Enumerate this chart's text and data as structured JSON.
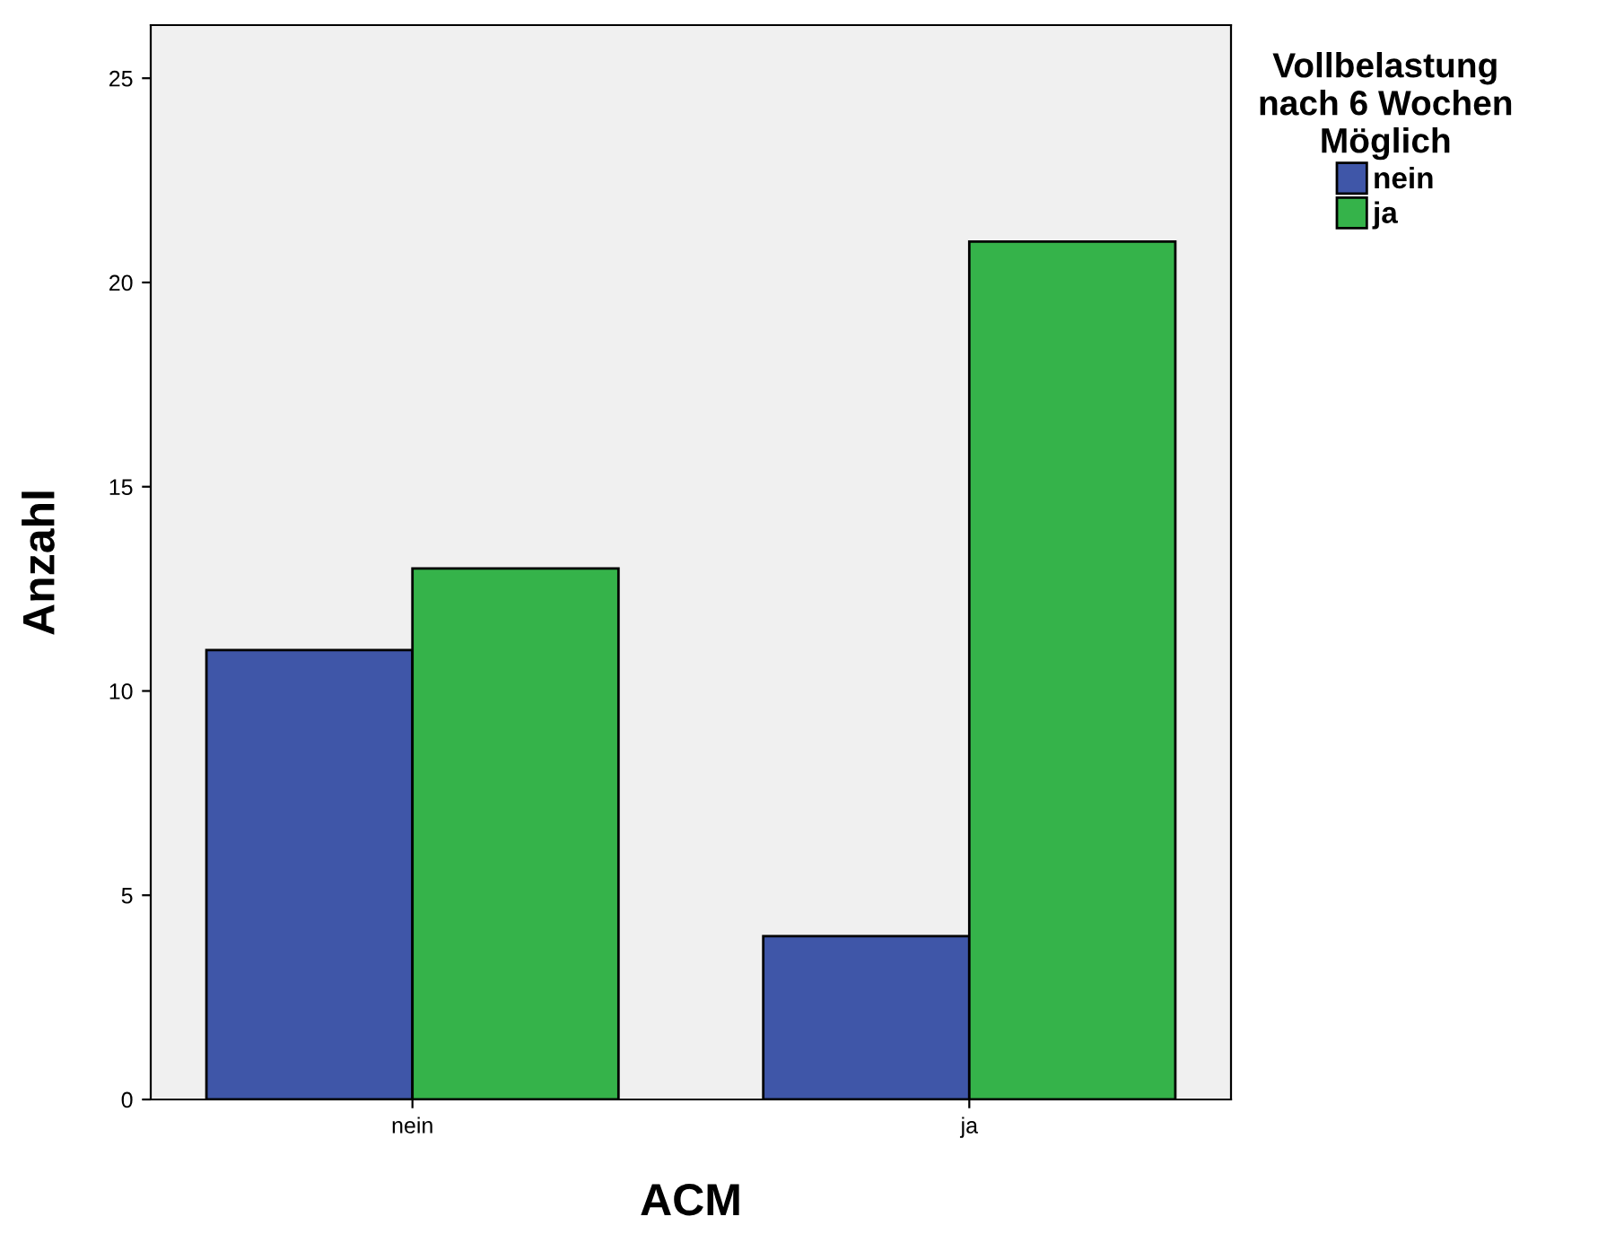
{
  "chart_data": {
    "type": "bar",
    "xlabel": "ACM",
    "ylabel": "Anzahl",
    "legend_title": "Vollbelastung\nnach 6 Wochen\nMöglich",
    "categories": [
      "nein",
      "ja"
    ],
    "series": [
      {
        "name": "nein",
        "color": "#3f56a8",
        "values": [
          11,
          4
        ]
      },
      {
        "name": "ja",
        "color": "#35b34a",
        "values": [
          13,
          21
        ]
      }
    ],
    "ylim": [
      0,
      26.3
    ],
    "yticks": [
      0,
      5,
      10,
      15,
      20,
      25
    ],
    "grid": false,
    "legend": "top right"
  }
}
